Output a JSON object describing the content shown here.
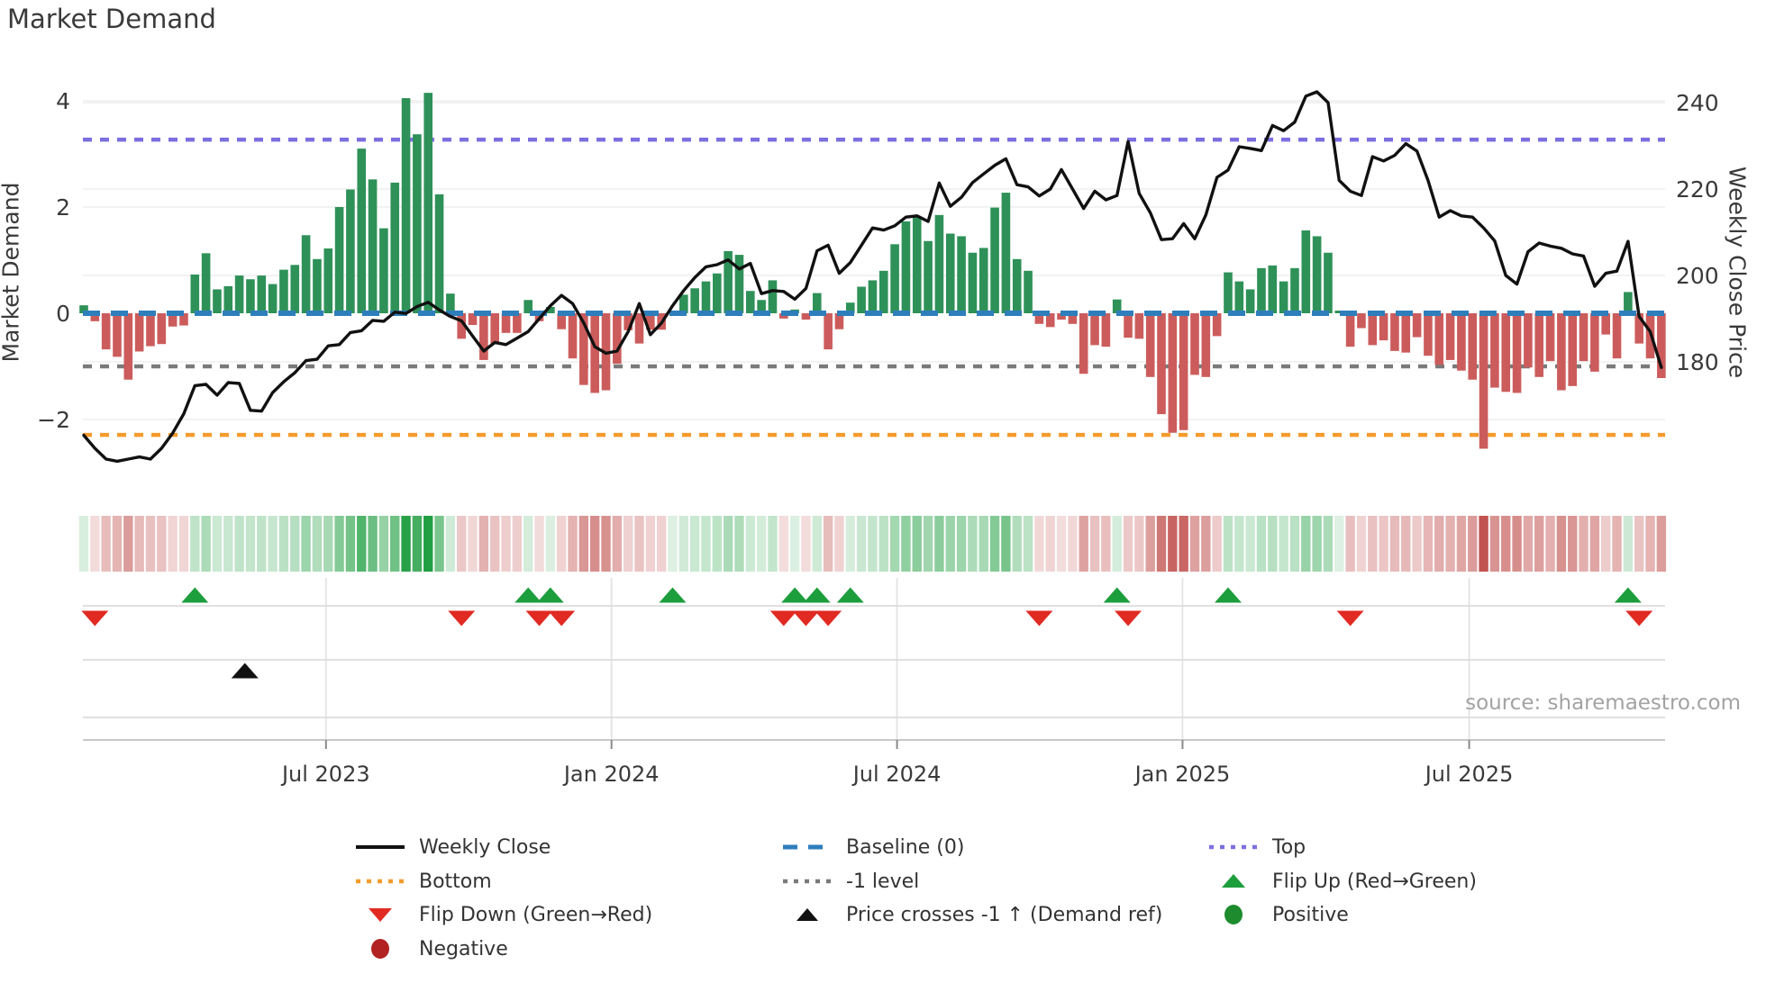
{
  "title": "Market Demand",
  "y_left_label": "Market Demand",
  "y_right_label": "Weekly Close Price",
  "source": "source: sharemaestro.com",
  "colors": {
    "bar_positive": "#2e9158",
    "bar_negative": "#cc5c5c",
    "price_line": "#111111",
    "baseline": "#2e7ebc",
    "top_line": "#7b6fe0",
    "bottom_line": "#f59b2d",
    "minus1_line": "#7a7a7a",
    "flip_up": "#1d9e3c",
    "flip_down": "#e02a22",
    "price_cross": "#111111",
    "positive_dot": "#1e8c2e",
    "negative_dot": "#b22222",
    "heat_green": "#1f9e40",
    "heat_red": "#c0504d",
    "grid": "#ededed",
    "panel_grid": "#dcdcdc",
    "axis_line": "#c8c8c8",
    "tick_text": "#3a3a3a"
  },
  "chart_data": {
    "type": "bar+line",
    "title": "Market Demand",
    "ylabel_left": "Market Demand",
    "ylabel_right": "Weekly Close Price",
    "x_tick_labels": [
      "Jul 2023",
      "Jan 2024",
      "Jul 2024",
      "Jan 2025",
      "Jul 2025"
    ],
    "x_tick_week_index": [
      21.8,
      47.5,
      73.2,
      98.9,
      124.7
    ],
    "left_ticks": [
      "4",
      "2",
      "0",
      "−2"
    ],
    "left_tick_values": [
      4,
      2,
      0,
      -2
    ],
    "right_ticks": [
      "240",
      "220",
      "200",
      "180"
    ],
    "right_tick_values": [
      240,
      220,
      200,
      180
    ],
    "ylim_demand": [
      -3.3,
      4.45
    ],
    "ylim_price": [
      152,
      246
    ],
    "top_level": 3.27,
    "bottom_level": -2.29,
    "minus1_level": -1,
    "baseline_level": 0,
    "grid": "horizontal-faint",
    "legend_position": "bottom",
    "series": [
      {
        "name": "Market Demand",
        "type": "bar",
        "axis": "left",
        "values": [
          0.15,
          -0.15,
          -0.68,
          -0.82,
          -1.25,
          -0.72,
          -0.62,
          -0.58,
          -0.25,
          -0.23,
          0.73,
          1.13,
          0.45,
          0.51,
          0.71,
          0.64,
          0.71,
          0.55,
          0.82,
          0.91,
          1.47,
          1.02,
          1.22,
          2.0,
          2.33,
          3.1,
          2.52,
          1.6,
          2.46,
          4.05,
          3.37,
          4.15,
          2.24,
          0.37,
          -0.48,
          -0.22,
          -0.88,
          -0.57,
          -0.37,
          -0.37,
          0.25,
          -0.15,
          0.12,
          -0.3,
          -0.85,
          -1.35,
          -1.5,
          -1.45,
          -0.95,
          -0.32,
          -0.57,
          -0.31,
          -0.31,
          0.05,
          0.35,
          0.47,
          0.6,
          0.75,
          1.17,
          1.1,
          0.42,
          0.25,
          0.62,
          -0.1,
          0.07,
          -0.12,
          0.38,
          -0.68,
          -0.3,
          0.2,
          0.5,
          0.62,
          0.8,
          1.3,
          1.73,
          1.82,
          1.36,
          1.85,
          1.5,
          1.45,
          1.14,
          1.23,
          1.99,
          2.27,
          1.02,
          0.8,
          -0.2,
          -0.26,
          -0.12,
          -0.2,
          -1.14,
          -0.6,
          -0.63,
          0.26,
          -0.46,
          -0.48,
          -1.2,
          -1.9,
          -2.25,
          -2.2,
          -1.16,
          -1.2,
          -0.43,
          0.77,
          0.6,
          0.45,
          0.85,
          0.9,
          0.6,
          0.85,
          1.56,
          1.45,
          1.14,
          0.05,
          -0.63,
          -0.28,
          -0.6,
          -0.51,
          -0.71,
          -0.74,
          -0.45,
          -0.8,
          -0.97,
          -0.88,
          -1.08,
          -1.25,
          -2.55,
          -1.4,
          -1.48,
          -1.5,
          -1.02,
          -1.2,
          -0.9,
          -1.45,
          -1.37,
          -0.9,
          -1.1,
          -0.4,
          -0.85,
          0.4,
          -0.57,
          -0.85,
          -1.22
        ]
      },
      {
        "name": "Weekly Close",
        "type": "line",
        "axis": "right",
        "values": [
          163,
          160,
          157.5,
          157,
          157.5,
          158,
          157.5,
          160,
          163.5,
          168,
          174.5,
          174.8,
          172.3,
          175.2,
          175,
          168.8,
          168.6,
          172.9,
          175.4,
          177.5,
          180.3,
          180.6,
          183.7,
          184,
          186.8,
          187.2,
          189.6,
          189.4,
          191.5,
          191.2,
          192.8,
          193.8,
          192,
          190.5,
          189.5,
          186,
          182.5,
          184.5,
          184,
          185.5,
          187,
          190,
          193,
          195.4,
          193.5,
          189,
          183.5,
          182,
          182.5,
          187,
          193.5,
          186.3,
          189,
          193,
          196.5,
          199.5,
          202,
          202.5,
          203.6,
          201.5,
          202.8,
          195.8,
          196.5,
          196.3,
          194.5,
          197,
          205.7,
          207,
          200.5,
          203,
          207,
          211,
          210.5,
          211.5,
          213.5,
          213.8,
          212.5,
          221.4,
          216,
          218.1,
          221.5,
          223.5,
          225.5,
          227,
          221,
          220.5,
          218.4,
          220,
          224.5,
          220,
          215.5,
          219.5,
          217.5,
          218.5,
          231,
          219,
          214.5,
          208.3,
          208.5,
          212,
          208.5,
          214,
          222.7,
          224.4,
          229.8,
          229.4,
          228.9,
          234.7,
          233.5,
          235.5,
          241.5,
          242.5,
          240,
          222,
          219.5,
          218.5,
          227.5,
          226.5,
          227.8,
          230.5,
          228.8,
          222,
          213.5,
          215,
          213.8,
          213.5,
          211,
          208,
          200,
          198,
          205.5,
          207.5,
          206.8,
          206.3,
          205,
          204.5,
          197.5,
          200.5,
          201,
          207.9,
          190.5,
          187,
          178.7
        ]
      }
    ],
    "heat_strip": "same values as Market Demand bars, color-intensity coded",
    "flip_up_weeks": [
      10,
      40,
      42,
      53,
      64,
      66,
      69,
      93,
      103,
      139
    ],
    "flip_down_weeks": [
      1,
      34,
      41,
      43,
      63,
      65,
      67,
      86,
      94,
      114,
      140
    ],
    "price_cross_weeks": [
      14.5
    ]
  },
  "legend": {
    "items": [
      {
        "marker": "line-black",
        "label": "Weekly Close",
        "col": 0,
        "row": 0
      },
      {
        "marker": "dash-blue",
        "label": "Baseline (0)",
        "col": 1,
        "row": 0
      },
      {
        "marker": "dot-purple",
        "label": "Top",
        "col": 2,
        "row": 0
      },
      {
        "marker": "dot-orange",
        "label": "Bottom",
        "col": 0,
        "row": 1
      },
      {
        "marker": "dot-gray",
        "label": "-1 level",
        "col": 1,
        "row": 1
      },
      {
        "marker": "tri-up-green",
        "label": "Flip Up (Red→Green)",
        "col": 2,
        "row": 1
      },
      {
        "marker": "tri-down-red",
        "label": "Flip Down (Green→Red)",
        "col": 0,
        "row": 2
      },
      {
        "marker": "tri-up-black",
        "label": "Price crosses -1 ↑ (Demand ref)",
        "col": 1,
        "row": 2
      },
      {
        "marker": "circle-green",
        "label": "Positive",
        "col": 2,
        "row": 2
      },
      {
        "marker": "circle-darkred",
        "label": "Negative",
        "col": 0,
        "row": 3
      }
    ]
  }
}
